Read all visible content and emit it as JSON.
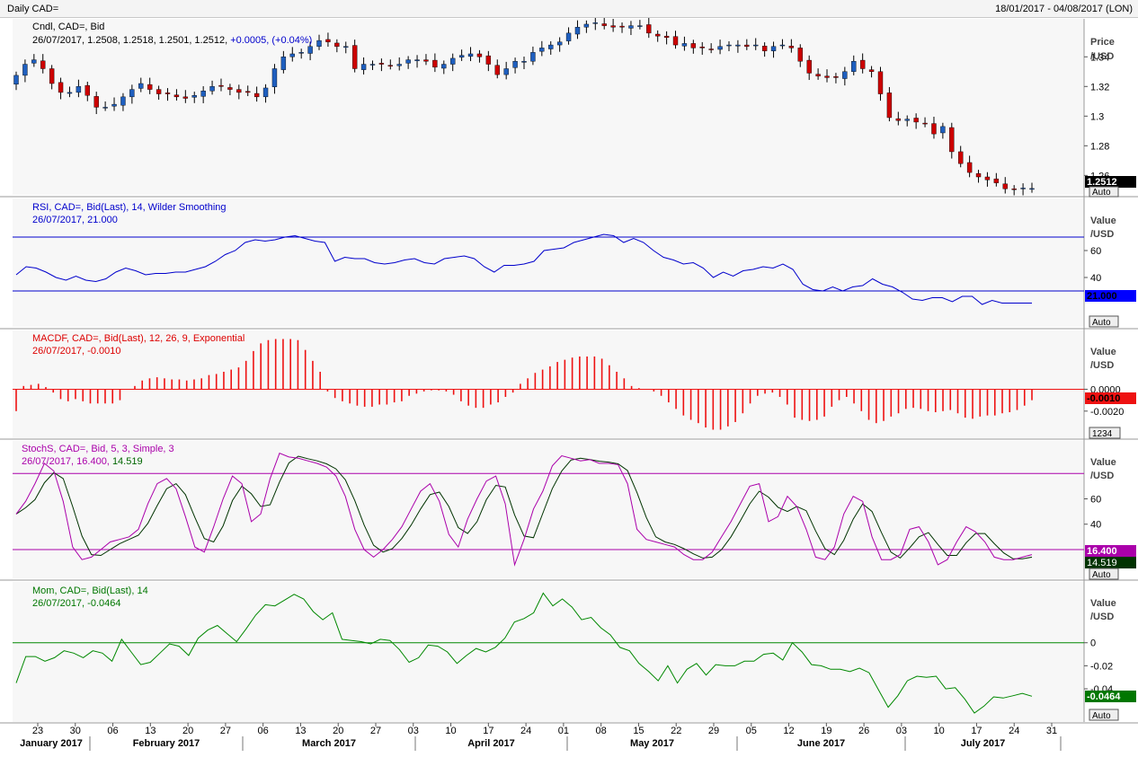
{
  "window": {
    "title": "Daily CAD=",
    "date_range": "18/01/2017 - 04/08/2017 (LON)"
  },
  "price_panel": {
    "header": "Cndl, CAD=, Bid",
    "ohlc_line": "26/07/2017, 1.2508, 1.2518, 1.2501, 1.2512, ",
    "change_text": "+0.0005, (+0.04%)",
    "axis_title_1": "Price",
    "axis_title_2": "/USD",
    "last_value": "1.2512",
    "auto": "Auto"
  },
  "rsi_panel": {
    "header": "RSI, CAD=, Bid(Last),  14, Wilder Smoothing",
    "value_line": "26/07/2017, 21.000",
    "axis_title_1": "Value",
    "axis_title_2": "/USD",
    "last_value": "21.000",
    "auto": "Auto"
  },
  "macd_panel": {
    "header": "MACDF, CAD=, Bid(Last),  12, 26, 9, Exponential",
    "value_line": "26/07/2017, -0.0010",
    "axis_title_1": "Value",
    "axis_title_2": "/USD",
    "last_value": "-0.0010",
    "scale_box": "1234"
  },
  "stoch_panel": {
    "header": "StochS, CAD=, Bid,  5, 3, Simple, 3",
    "value_line_prefix": "26/07/2017, 16.400, ",
    "value_line_suffix": "14.519",
    "axis_title_1": "Value",
    "axis_title_2": "/USD",
    "last_value_k": "16.400",
    "last_value_d": "14.519",
    "auto": "Auto"
  },
  "mom_panel": {
    "header": "Mom, CAD=, Bid(Last),  14",
    "value_line": "26/07/2017, -0.0464",
    "axis_title_1": "Value",
    "axis_title_2": "/USD",
    "last_value": "-0.0464",
    "auto": "Auto"
  },
  "colors": {
    "up": "#1f5fbf",
    "down": "#cc0000",
    "rsi": "#0000cc",
    "macd": "#ee1111",
    "stoch_k": "#aa00aa",
    "stoch_d": "#003300",
    "mom": "#008800"
  },
  "chart_data": {
    "type": "line",
    "x_day_ticks": [
      "23",
      "30",
      "06",
      "13",
      "20",
      "27",
      "06",
      "13",
      "20",
      "27",
      "03",
      "10",
      "17",
      "24",
      "01",
      "08",
      "15",
      "22",
      "29",
      "05",
      "12",
      "19",
      "26",
      "03",
      "10",
      "17",
      "24",
      "31"
    ],
    "x_month_labels": [
      "January 2017",
      "February 2017",
      "March 2017",
      "April 2017",
      "May 2017",
      "June 2017",
      "July 2017"
    ],
    "price": {
      "type": "candlestick",
      "yticks": [
        1.26,
        1.28,
        1.3,
        1.32,
        1.34
      ],
      "ylim": [
        1.2475,
        1.365
      ],
      "close": [
        1.3275,
        1.335,
        1.338,
        1.332,
        1.322,
        1.316,
        1.316,
        1.32,
        1.314,
        1.306,
        1.306,
        1.308,
        1.313,
        1.318,
        1.322,
        1.318,
        1.315,
        1.315,
        1.313,
        1.312,
        1.314,
        1.317,
        1.32,
        1.32,
        1.318,
        1.316,
        1.316,
        1.313,
        1.319,
        1.332,
        1.34,
        1.342,
        1.343,
        1.347,
        1.351,
        1.35,
        1.347,
        1.347,
        1.332,
        1.335,
        1.335,
        1.335,
        1.334,
        1.335,
        1.338,
        1.338,
        1.337,
        1.333,
        1.335,
        1.339,
        1.341,
        1.342,
        1.34,
        1.335,
        1.328,
        1.332,
        1.337,
        1.337,
        1.343,
        1.346,
        1.348,
        1.35,
        1.356,
        1.36,
        1.362,
        1.363,
        1.361,
        1.36,
        1.36,
        1.361,
        1.361,
        1.356,
        1.354,
        1.353,
        1.348,
        1.349,
        1.346,
        1.346,
        1.345,
        1.347,
        1.348,
        1.348,
        1.347,
        1.348,
        1.344,
        1.347,
        1.348,
        1.346,
        1.337,
        1.329,
        1.327,
        1.326,
        1.326,
        1.33,
        1.337,
        1.332,
        1.33,
        1.315,
        1.299,
        1.297,
        1.298,
        1.296,
        1.295,
        1.288,
        1.293,
        1.276,
        1.268,
        1.262,
        1.259,
        1.257,
        1.255,
        1.251,
        1.2505,
        1.2515,
        1.2512
      ]
    },
    "rsi": {
      "yticks": [
        40,
        60
      ],
      "ylim": [
        4,
        98
      ],
      "levels": [
        30,
        70
      ],
      "values": [
        42,
        48,
        47,
        44,
        40,
        38,
        41,
        38,
        37,
        39,
        44,
        47,
        45,
        42,
        43,
        43,
        44,
        44,
        46,
        48,
        52,
        57,
        60,
        66,
        68,
        67,
        68,
        70,
        71,
        69,
        67,
        66,
        52,
        55,
        54,
        54,
        51,
        50,
        51,
        53,
        54,
        51,
        50,
        54,
        55,
        56,
        54,
        48,
        44,
        49,
        49,
        50,
        52,
        60,
        61,
        62,
        66,
        68,
        70,
        72,
        71,
        66,
        69,
        66,
        60,
        55,
        53,
        50,
        51,
        47,
        40,
        44,
        41,
        45,
        46,
        48,
        47,
        50,
        46,
        35,
        31,
        30,
        33,
        30,
        33,
        34,
        39,
        35,
        33,
        29,
        24,
        23,
        25,
        25,
        22,
        26,
        26,
        20,
        23,
        21,
        21,
        21,
        21
      ]
    },
    "macd": {
      "type": "bar",
      "yticks": [
        0.0,
        -0.002
      ],
      "ylim": [
        -0.0044,
        0.0053
      ],
      "values": [
        -0.002,
        0.0003,
        0.0004,
        0.0005,
        0.0002,
        -0.0003,
        -0.0009,
        -0.0011,
        -0.0009,
        -0.0011,
        -0.0013,
        -0.0013,
        -0.0013,
        -0.0013,
        -0.001,
        0.0,
        0.0003,
        0.0008,
        0.001,
        0.0011,
        0.001,
        0.0009,
        0.0009,
        0.0008,
        0.0009,
        0.001,
        0.0013,
        0.0014,
        0.0016,
        0.0018,
        0.002,
        0.0026,
        0.0035,
        0.0042,
        0.0045,
        0.0046,
        0.0046,
        0.0046,
        0.0045,
        0.0036,
        0.0026,
        0.0016,
        -0.0002,
        -0.0008,
        -0.0011,
        -0.0013,
        -0.0015,
        -0.0016,
        -0.0016,
        -0.0014,
        -0.0014,
        -0.0012,
        -0.0011,
        -0.0006,
        -0.0004,
        -0.0002,
        -0.0001,
        -0.0001,
        -0.0002,
        -0.0005,
        -0.0011,
        -0.0015,
        -0.0017,
        -0.0017,
        -0.0014,
        -0.0012,
        -0.0007,
        -0.0003,
        0.0005,
        0.001,
        0.0015,
        0.0018,
        0.0021,
        0.0025,
        0.0027,
        0.0029,
        0.003,
        0.003,
        0.003,
        0.0028,
        0.0022,
        0.0016,
        0.001,
        0.0003,
        0.0001,
        0.0,
        -0.0002,
        -0.0006,
        -0.0012,
        -0.0018,
        -0.0024,
        -0.0028,
        -0.0031,
        -0.0035,
        -0.0037,
        -0.0037,
        -0.0034,
        -0.003,
        -0.0022,
        -0.0013,
        -0.0006,
        -0.0004,
        -0.0003,
        -0.0007,
        -0.0014,
        -0.0026,
        -0.0028,
        -0.0029,
        -0.0028,
        -0.0025,
        -0.0016,
        -0.001,
        -0.0007,
        -0.0013,
        -0.002,
        -0.0028,
        -0.0031,
        -0.0029,
        -0.0025,
        -0.0022,
        -0.0018,
        -0.0017,
        -0.0018,
        -0.002,
        -0.0021,
        -0.002,
        -0.0019,
        -0.0022,
        -0.0026,
        -0.0027,
        -0.0025,
        -0.0024,
        -0.0024,
        -0.0022,
        -0.0021,
        -0.0019,
        -0.0015,
        -0.001
      ]
    },
    "stoch": {
      "yticks": [
        40,
        60
      ],
      "ylim": [
        -2,
        105
      ],
      "levels": [
        20,
        80
      ],
      "k": [
        48,
        58,
        72,
        88,
        82,
        58,
        22,
        12,
        14,
        20,
        26,
        28,
        30,
        36,
        56,
        72,
        76,
        68,
        46,
        22,
        18,
        38,
        60,
        78,
        72,
        42,
        48,
        76,
        96,
        93,
        92,
        90,
        88,
        85,
        78,
        62,
        36,
        20,
        14,
        20,
        28,
        38,
        52,
        66,
        72,
        58,
        32,
        22,
        44,
        60,
        74,
        78,
        56,
        8,
        28,
        52,
        66,
        86,
        94,
        92,
        90,
        91,
        88,
        88,
        87,
        72,
        36,
        28,
        26,
        24,
        22,
        16,
        12,
        12,
        18,
        30,
        42,
        56,
        70,
        72,
        42,
        46,
        62,
        54,
        36,
        14,
        12,
        22,
        48,
        62,
        58,
        30,
        12,
        12,
        16,
        36,
        38,
        26,
        8,
        12,
        26,
        38,
        34,
        26,
        14,
        12,
        12,
        14,
        16
      ]
    },
    "mom": {
      "yticks": [
        0,
        -0.02,
        -0.04
      ],
      "ylim": [
        -0.068,
        0.052
      ],
      "values": [
        -0.035,
        -0.012,
        -0.012,
        -0.016,
        -0.013,
        -0.007,
        -0.009,
        -0.013,
        -0.007,
        -0.009,
        -0.016,
        0.003,
        -0.008,
        -0.019,
        -0.017,
        -0.009,
        -0.001,
        -0.003,
        -0.011,
        0.004,
        0.011,
        0.015,
        0.008,
        0.001,
        0.012,
        0.024,
        0.033,
        0.032,
        0.037,
        0.042,
        0.038,
        0.027,
        0.02,
        0.026,
        0.003,
        0.002,
        0.001,
        -0.001,
        0.003,
        0.002,
        -0.006,
        -0.017,
        -0.013,
        -0.002,
        -0.003,
        -0.008,
        -0.018,
        -0.011,
        -0.005,
        -0.008,
        -0.004,
        0.004,
        0.018,
        0.021,
        0.026,
        0.043,
        0.032,
        0.038,
        0.031,
        0.02,
        0.022,
        0.013,
        0.007,
        -0.004,
        -0.007,
        -0.018,
        -0.025,
        -0.033,
        -0.02,
        -0.035,
        -0.023,
        -0.018,
        -0.028,
        -0.019,
        -0.02,
        -0.02,
        -0.016,
        -0.016,
        -0.01,
        -0.009,
        -0.015,
        0.0,
        -0.008,
        -0.019,
        -0.02,
        -0.023,
        -0.023,
        -0.025,
        -0.022,
        -0.026,
        -0.041,
        -0.056,
        -0.046,
        -0.033,
        -0.029,
        -0.03,
        -0.029,
        -0.04,
        -0.039,
        -0.049,
        -0.061,
        -0.055,
        -0.047,
        -0.048,
        -0.046,
        -0.044,
        -0.0464
      ]
    }
  }
}
